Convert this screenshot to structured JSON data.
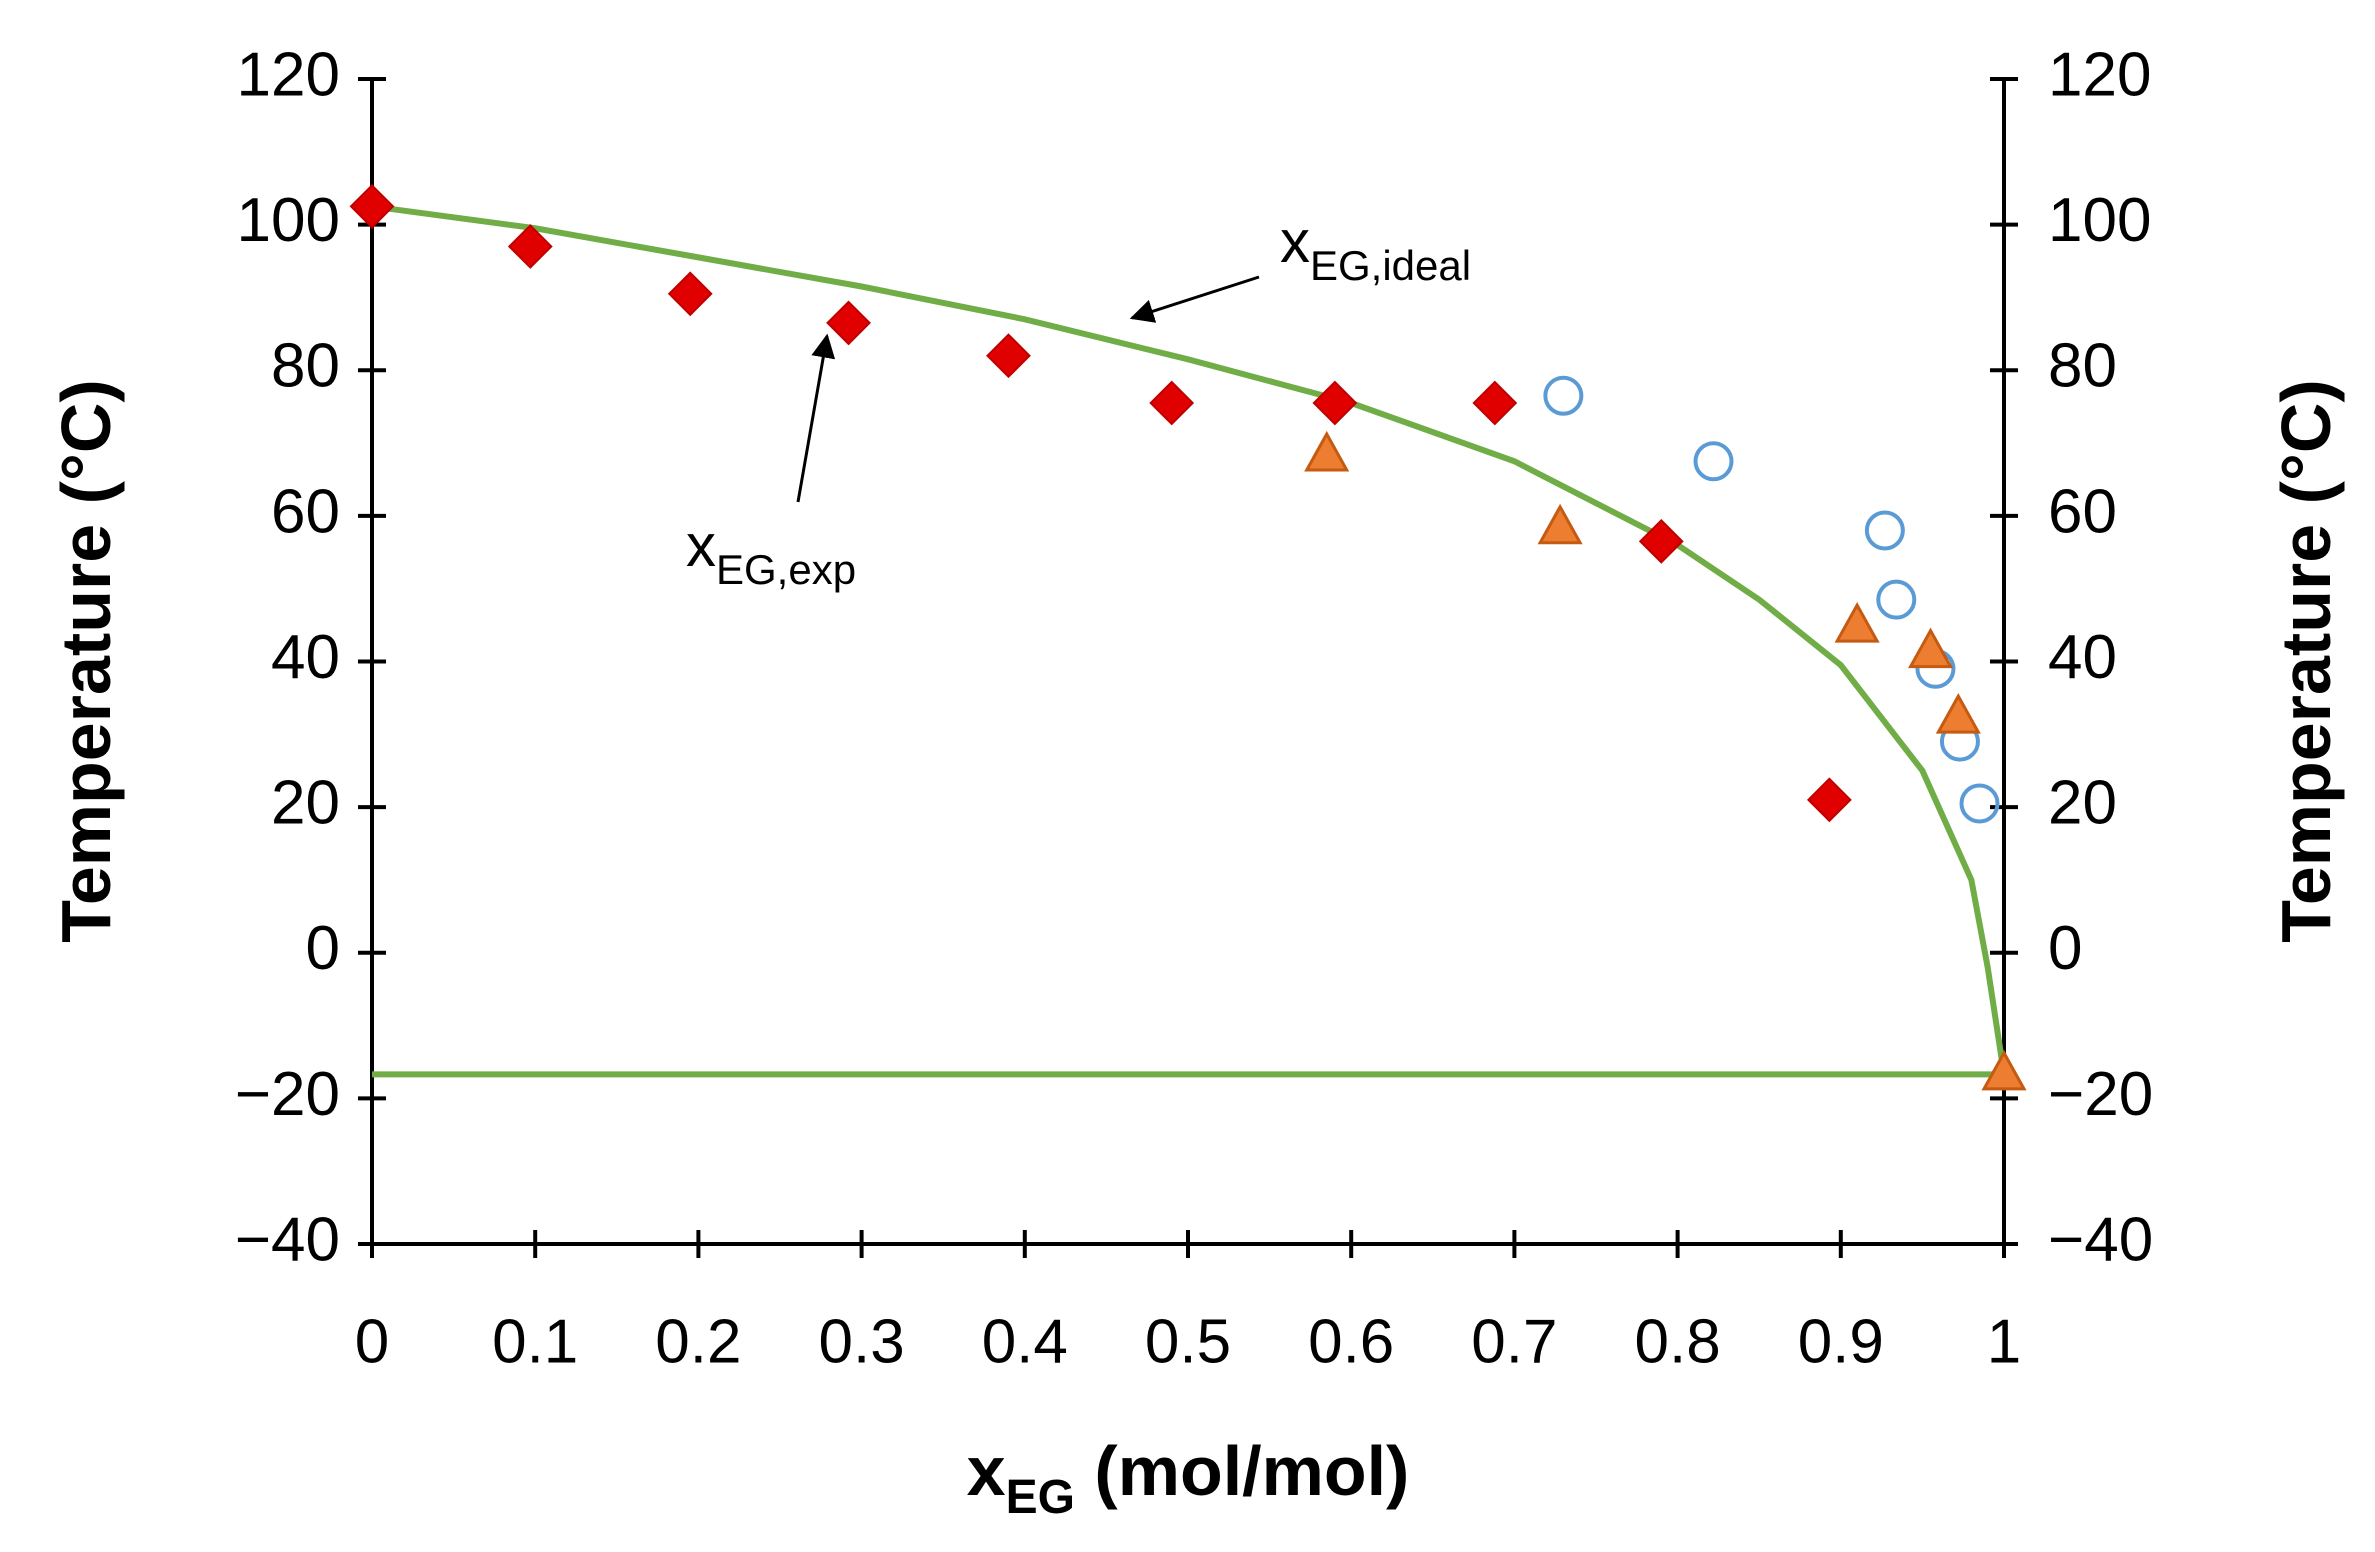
{
  "chart_data": {
    "type": "scatter",
    "xlabel": {
      "main": "x",
      "sub": "EG",
      "rest": " (mol/mol)"
    },
    "ylabel": "Temperature (°C)",
    "y2label": "Temperature (°C)",
    "xlim": [
      0,
      1
    ],
    "xticks": [
      0,
      0.1,
      0.2,
      0.3,
      0.4,
      0.5,
      0.6,
      0.7,
      0.8,
      0.9,
      1
    ],
    "ylim": [
      -40,
      120
    ],
    "yticks": [
      {
        "value": -40,
        "label": "−40"
      },
      {
        "value": -20,
        "label": "−20"
      },
      0,
      20,
      40,
      60,
      80,
      100,
      120
    ],
    "y2lim": [
      -40,
      120
    ],
    "y2ticks": [
      {
        "value": -40,
        "label": "−40"
      },
      {
        "value": -20,
        "label": "−20"
      },
      0,
      20,
      40,
      60,
      80,
      100,
      120
    ],
    "series": [
      {
        "marker": "line",
        "color": "#70ad47",
        "x": [
          0,
          0.1,
          0.2,
          0.3,
          0.4,
          0.5,
          0.6,
          0.7,
          0.8,
          0.85,
          0.9,
          0.95,
          0.98,
          0.99,
          1.0
        ],
        "values": [
          102.5,
          99.5,
          95.5,
          91.5,
          87,
          81.5,
          75.5,
          67.5,
          56,
          48.5,
          39.5,
          25,
          10,
          -2,
          -16.7
        ]
      },
      {
        "marker": "line",
        "color": "#70ad47",
        "x": [
          0,
          1
        ],
        "values": [
          -16.7,
          -16.7
        ]
      },
      {
        "marker": "diamond",
        "color": "#e00000",
        "x": [
          0,
          0.097,
          0.195,
          0.292,
          0.39,
          0.49,
          0.59,
          0.688,
          0.79,
          0.893
        ],
        "values": [
          102.5,
          97,
          90.5,
          86.5,
          82,
          75.5,
          75.5,
          75.5,
          56.5,
          21
        ]
      },
      {
        "marker": "circle",
        "color": "#5b9bd5",
        "x": [
          0.73,
          0.822,
          0.927,
          0.934,
          0.958,
          0.973,
          0.985
        ],
        "values": [
          76.5,
          67.5,
          58,
          48.5,
          39,
          29,
          20.5
        ]
      },
      {
        "marker": "triangle",
        "color": "#ed7d31",
        "x": [
          0.585,
          0.728,
          0.91,
          0.955,
          0.972,
          1.0
        ],
        "values": [
          68.5,
          58.5,
          45,
          41.5,
          32.5,
          -16.5
        ]
      }
    ],
    "annotations": [
      {
        "text": "x",
        "sub": "EG,ideal"
      },
      {
        "text": "x",
        "sub": "EG,exp"
      }
    ]
  }
}
